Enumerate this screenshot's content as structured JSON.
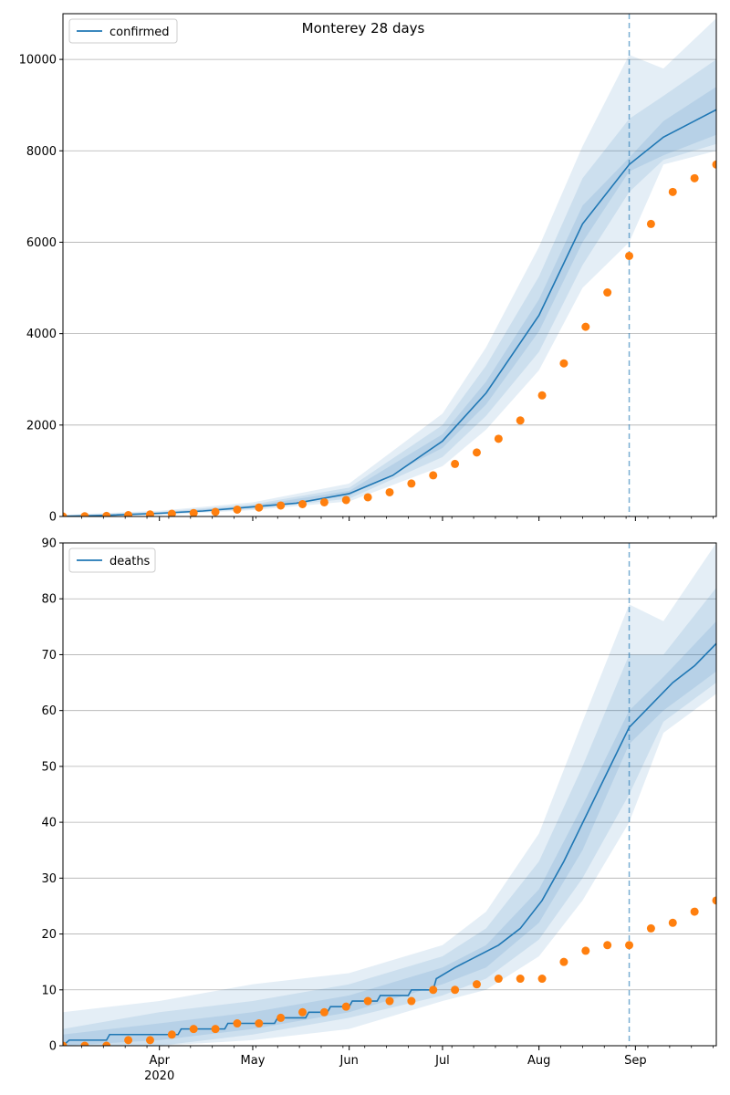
{
  "figure": {
    "title": "Monterey 28 days"
  },
  "chart_data": [
    {
      "type": "line",
      "name": "confirmed-panel",
      "x_axis": {
        "type": "date",
        "range": [
          "2020-03-01",
          "2020-09-27"
        ],
        "major_ticks": [
          {
            "date": "2020-04-01",
            "label": "Apr",
            "sublabel": "2020"
          },
          {
            "date": "2020-05-01",
            "label": "May"
          },
          {
            "date": "2020-06-01",
            "label": "Jun"
          },
          {
            "date": "2020-07-01",
            "label": "Jul"
          },
          {
            "date": "2020-08-01",
            "label": "Aug"
          },
          {
            "date": "2020-09-01",
            "label": "Sep"
          }
        ],
        "minor_ticks": "weekly",
        "tick_labels_visible": false
      },
      "ylim": [
        0,
        11000
      ],
      "yticks": [
        0,
        2000,
        4000,
        6000,
        8000,
        10000
      ],
      "grid": "horizontal",
      "legend": {
        "position": "top-left",
        "entries": [
          "confirmed"
        ]
      },
      "forecast_start": "2020-08-30",
      "series": [
        {
          "name": "confirmed",
          "kind": "model-line",
          "color": "#1f77b4",
          "points": [
            [
              "2020-03-01",
              5
            ],
            [
              "2020-03-15",
              25
            ],
            [
              "2020-04-01",
              70
            ],
            [
              "2020-04-15",
              120
            ],
            [
              "2020-05-01",
              210
            ],
            [
              "2020-05-15",
              290
            ],
            [
              "2020-06-01",
              500
            ],
            [
              "2020-06-15",
              900
            ],
            [
              "2020-07-01",
              1650
            ],
            [
              "2020-07-15",
              2700
            ],
            [
              "2020-08-01",
              4400
            ],
            [
              "2020-08-15",
              6400
            ],
            [
              "2020-08-30",
              7700
            ],
            [
              "2020-09-10",
              8300
            ],
            [
              "2020-09-27",
              8900
            ]
          ],
          "bands": [
            {
              "level": "inner",
              "points": [
                [
                  "2020-03-01",
                  0,
                  10
                ],
                [
                  "2020-04-01",
                  60,
                  85
                ],
                [
                  "2020-05-01",
                  190,
                  235
                ],
                [
                  "2020-06-01",
                  450,
                  560
                ],
                [
                  "2020-07-01",
                  1500,
                  1800
                ],
                [
                  "2020-07-15",
                  2450,
                  2950
                ],
                [
                  "2020-08-01",
                  4050,
                  4750
                ],
                [
                  "2020-08-15",
                  6000,
                  6800
                ],
                [
                  "2020-08-30",
                  7550,
                  7850
                ],
                [
                  "2020-09-10",
                  7900,
                  8650
                ],
                [
                  "2020-09-27",
                  8350,
                  9400
                ]
              ]
            },
            {
              "level": "middle",
              "points": [
                [
                  "2020-03-01",
                  0,
                  20
                ],
                [
                  "2020-04-01",
                  45,
                  100
                ],
                [
                  "2020-05-01",
                  165,
                  265
                ],
                [
                  "2020-06-01",
                  390,
                  630
                ],
                [
                  "2020-07-01",
                  1300,
                  2000
                ],
                [
                  "2020-07-15",
                  2200,
                  3300
                ],
                [
                  "2020-08-01",
                  3600,
                  5250
                ],
                [
                  "2020-08-15",
                  5500,
                  7400
                ],
                [
                  "2020-08-30",
                  7100,
                  8700
                ],
                [
                  "2020-09-10",
                  7800,
                  9200
                ],
                [
                  "2020-09-27",
                  8150,
                  10000
                ]
              ]
            },
            {
              "level": "outer",
              "points": [
                [
                  "2020-03-01",
                  0,
                  35
                ],
                [
                  "2020-04-01",
                  30,
                  125
                ],
                [
                  "2020-05-01",
                  140,
                  310
                ],
                [
                  "2020-06-01",
                  330,
                  720
                ],
                [
                  "2020-07-01",
                  1100,
                  2250
                ],
                [
                  "2020-07-15",
                  1900,
                  3700
                ],
                [
                  "2020-08-01",
                  3200,
                  5900
                ],
                [
                  "2020-08-15",
                  5000,
                  8100
                ],
                [
                  "2020-08-30",
                  6000,
                  10100
                ],
                [
                  "2020-09-10",
                  7700,
                  9800
                ],
                [
                  "2020-09-27",
                  8000,
                  10900
                ]
              ]
            }
          ]
        },
        {
          "name": "observed-confirmed",
          "kind": "scatter",
          "color": "#ff7f0e",
          "points": [
            [
              "2020-03-01",
              0
            ],
            [
              "2020-03-08",
              5
            ],
            [
              "2020-03-15",
              12
            ],
            [
              "2020-03-22",
              30
            ],
            [
              "2020-03-29",
              45
            ],
            [
              "2020-04-05",
              60
            ],
            [
              "2020-04-12",
              75
            ],
            [
              "2020-04-19",
              100
            ],
            [
              "2020-04-26",
              150
            ],
            [
              "2020-05-03",
              195
            ],
            [
              "2020-05-10",
              240
            ],
            [
              "2020-05-17",
              270
            ],
            [
              "2020-05-24",
              310
            ],
            [
              "2020-05-31",
              360
            ],
            [
              "2020-06-07",
              420
            ],
            [
              "2020-06-14",
              530
            ],
            [
              "2020-06-21",
              720
            ],
            [
              "2020-06-28",
              900
            ],
            [
              "2020-07-05",
              1150
            ],
            [
              "2020-07-12",
              1400
            ],
            [
              "2020-07-19",
              1700
            ],
            [
              "2020-07-26",
              2100
            ],
            [
              "2020-08-02",
              2650
            ],
            [
              "2020-08-09",
              3350
            ],
            [
              "2020-08-16",
              4150
            ],
            [
              "2020-08-23",
              4900
            ],
            [
              "2020-08-30",
              5700
            ],
            [
              "2020-09-06",
              6400
            ],
            [
              "2020-09-13",
              7100
            ],
            [
              "2020-09-20",
              7400
            ],
            [
              "2020-09-27",
              7700
            ]
          ]
        }
      ]
    },
    {
      "type": "line",
      "name": "deaths-panel",
      "x_axis": {
        "type": "date",
        "range": [
          "2020-03-01",
          "2020-09-27"
        ],
        "major_ticks": [
          {
            "date": "2020-04-01",
            "label": "Apr",
            "sublabel": "2020"
          },
          {
            "date": "2020-05-01",
            "label": "May"
          },
          {
            "date": "2020-06-01",
            "label": "Jun"
          },
          {
            "date": "2020-07-01",
            "label": "Jul"
          },
          {
            "date": "2020-08-01",
            "label": "Aug"
          },
          {
            "date": "2020-09-01",
            "label": "Sep"
          }
        ],
        "minor_ticks": "weekly"
      },
      "ylim": [
        0,
        90
      ],
      "yticks": [
        0,
        10,
        20,
        30,
        40,
        50,
        60,
        70,
        80,
        90
      ],
      "grid": "horizontal",
      "legend": {
        "position": "top-left",
        "entries": [
          "deaths"
        ]
      },
      "forecast_start": "2020-08-30",
      "series": [
        {
          "name": "deaths",
          "kind": "model-line",
          "step": true,
          "color": "#1f77b4",
          "points": [
            [
              "2020-03-01",
              0
            ],
            [
              "2020-03-03",
              1
            ],
            [
              "2020-03-15",
              1
            ],
            [
              "2020-03-16",
              2
            ],
            [
              "2020-04-07",
              2
            ],
            [
              "2020-04-08",
              3
            ],
            [
              "2020-04-22",
              3
            ],
            [
              "2020-04-23",
              4
            ],
            [
              "2020-05-08",
              4
            ],
            [
              "2020-05-09",
              5
            ],
            [
              "2020-05-18",
              5
            ],
            [
              "2020-05-19",
              6
            ],
            [
              "2020-05-25",
              6
            ],
            [
              "2020-05-26",
              7
            ],
            [
              "2020-06-01",
              7
            ],
            [
              "2020-06-02",
              8
            ],
            [
              "2020-06-10",
              8
            ],
            [
              "2020-06-11",
              9
            ],
            [
              "2020-06-20",
              9
            ],
            [
              "2020-06-21",
              10
            ],
            [
              "2020-06-28",
              10
            ],
            [
              "2020-06-29",
              12
            ],
            [
              "2020-07-05",
              14
            ],
            [
              "2020-07-12",
              16
            ],
            [
              "2020-07-19",
              18
            ],
            [
              "2020-07-26",
              21
            ],
            [
              "2020-08-02",
              26
            ],
            [
              "2020-08-09",
              33
            ],
            [
              "2020-08-16",
              41
            ],
            [
              "2020-08-23",
              49
            ],
            [
              "2020-08-30",
              57
            ],
            [
              "2020-09-06",
              61
            ],
            [
              "2020-09-13",
              65
            ],
            [
              "2020-09-20",
              68
            ],
            [
              "2020-09-27",
              72
            ]
          ],
          "bands": [
            {
              "level": "inner",
              "points": [
                [
                  "2020-03-01",
                  0,
                  2
                ],
                [
                  "2020-04-01",
                  1,
                  4
                ],
                [
                  "2020-05-01",
                  3,
                  6
                ],
                [
                  "2020-06-01",
                  6,
                  9
                ],
                [
                  "2020-07-01",
                  11,
                  14
                ],
                [
                  "2020-07-15",
                  14,
                  18
                ],
                [
                  "2020-08-01",
                  22,
                  28
                ],
                [
                  "2020-08-15",
                  35,
                  43
                ],
                [
                  "2020-08-30",
                  54,
                  60
                ],
                [
                  "2020-09-10",
                  60,
                  66
                ],
                [
                  "2020-09-27",
                  67,
                  76
                ]
              ]
            },
            {
              "level": "middle",
              "points": [
                [
                  "2020-03-01",
                  0,
                  3
                ],
                [
                  "2020-04-01",
                  0,
                  6
                ],
                [
                  "2020-05-01",
                  2,
                  8
                ],
                [
                  "2020-06-01",
                  5,
                  11
                ],
                [
                  "2020-07-01",
                  9,
                  16
                ],
                [
                  "2020-07-15",
                  12,
                  21
                ],
                [
                  "2020-08-01",
                  19,
                  33
                ],
                [
                  "2020-08-15",
                  30,
                  50
                ],
                [
                  "2020-08-30",
                  45,
                  70
                ],
                [
                  "2020-09-10",
                  58,
                  70
                ],
                [
                  "2020-09-27",
                  65,
                  82
                ]
              ]
            },
            {
              "level": "outer",
              "points": [
                [
                  "2020-03-01",
                  0,
                  6
                ],
                [
                  "2020-04-01",
                  0,
                  8
                ],
                [
                  "2020-05-01",
                  1,
                  11
                ],
                [
                  "2020-06-01",
                  3,
                  13
                ],
                [
                  "2020-07-01",
                  8,
                  18
                ],
                [
                  "2020-07-15",
                  10,
                  24
                ],
                [
                  "2020-08-01",
                  16,
                  38
                ],
                [
                  "2020-08-15",
                  26,
                  58
                ],
                [
                  "2020-08-30",
                  40,
                  79
                ],
                [
                  "2020-09-10",
                  56,
                  76
                ],
                [
                  "2020-09-27",
                  63,
                  90
                ]
              ]
            }
          ]
        },
        {
          "name": "observed-deaths",
          "kind": "scatter",
          "color": "#ff7f0e",
          "points": [
            [
              "2020-03-01",
              0
            ],
            [
              "2020-03-08",
              0
            ],
            [
              "2020-03-15",
              0
            ],
            [
              "2020-03-22",
              1
            ],
            [
              "2020-03-29",
              1
            ],
            [
              "2020-04-05",
              2
            ],
            [
              "2020-04-12",
              3
            ],
            [
              "2020-04-19",
              3
            ],
            [
              "2020-04-26",
              4
            ],
            [
              "2020-05-03",
              4
            ],
            [
              "2020-05-10",
              5
            ],
            [
              "2020-05-17",
              6
            ],
            [
              "2020-05-24",
              6
            ],
            [
              "2020-05-31",
              7
            ],
            [
              "2020-06-07",
              8
            ],
            [
              "2020-06-14",
              8
            ],
            [
              "2020-06-21",
              8
            ],
            [
              "2020-06-28",
              10
            ],
            [
              "2020-07-05",
              10
            ],
            [
              "2020-07-12",
              11
            ],
            [
              "2020-07-19",
              12
            ],
            [
              "2020-07-26",
              12
            ],
            [
              "2020-08-02",
              12
            ],
            [
              "2020-08-09",
              15
            ],
            [
              "2020-08-16",
              17
            ],
            [
              "2020-08-23",
              18
            ],
            [
              "2020-08-30",
              18
            ],
            [
              "2020-09-06",
              21
            ],
            [
              "2020-09-13",
              22
            ],
            [
              "2020-09-20",
              24
            ],
            [
              "2020-09-27",
              26
            ]
          ]
        }
      ]
    }
  ]
}
